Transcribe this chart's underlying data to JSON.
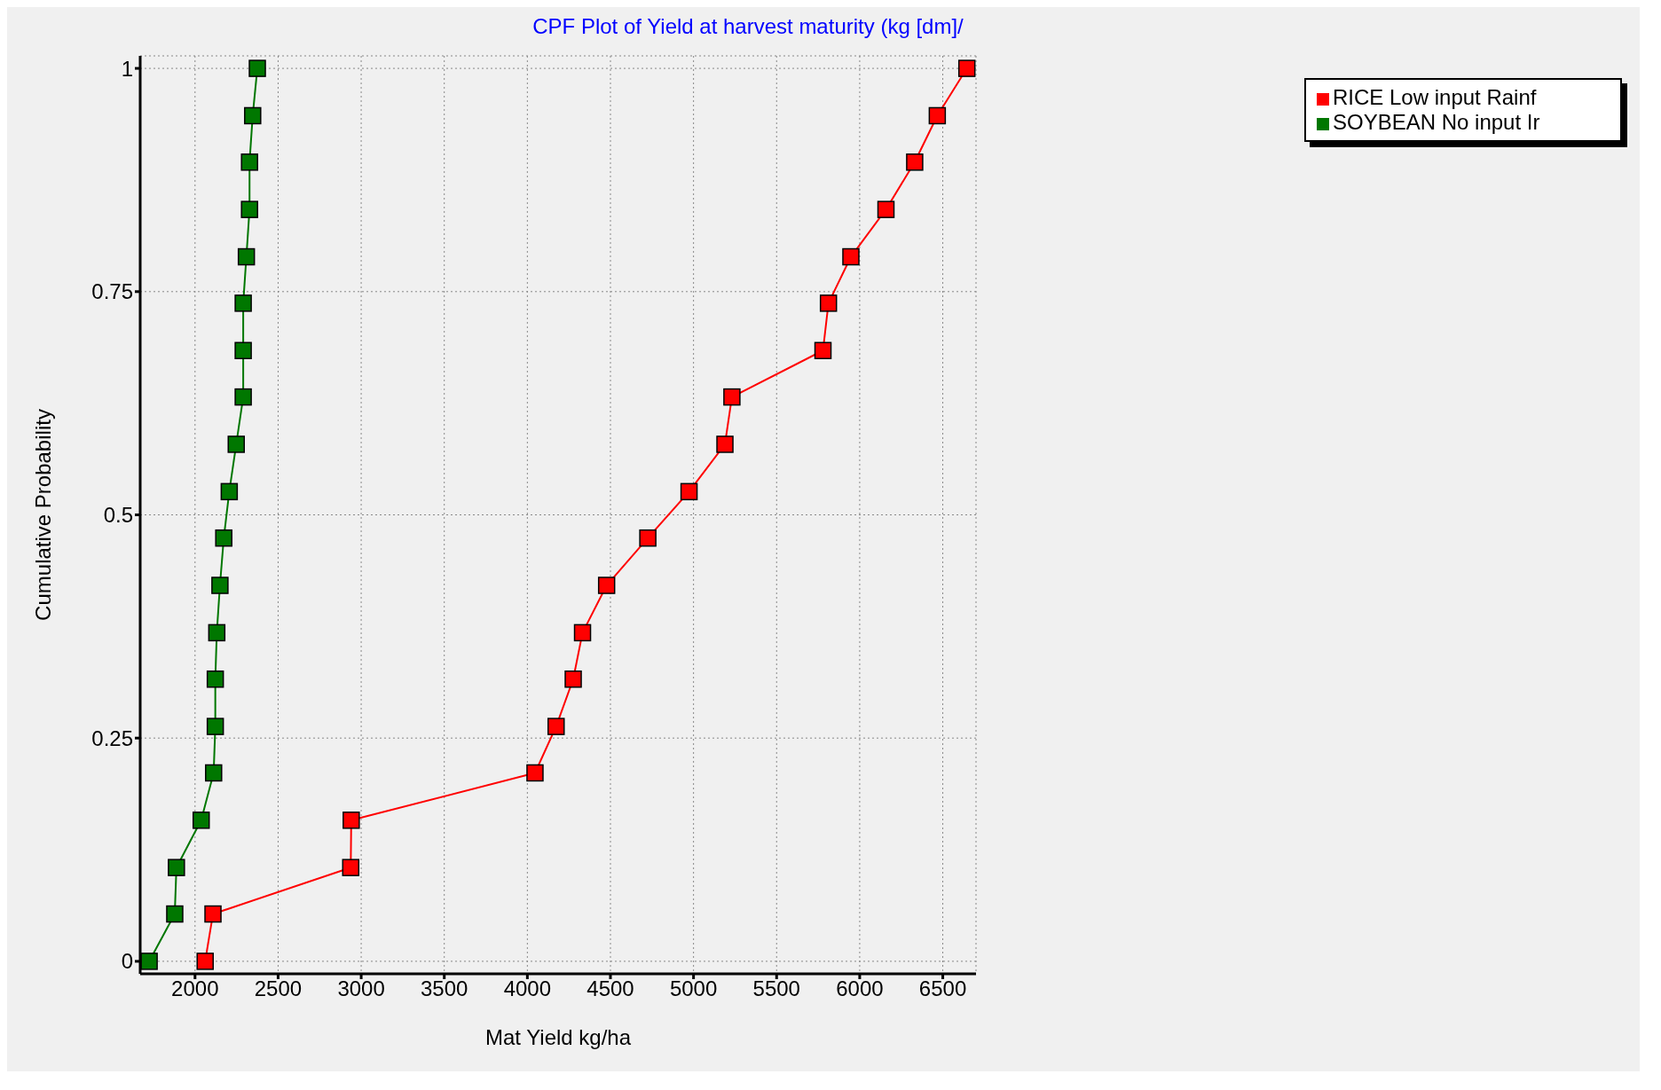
{
  "chart_data": {
    "type": "line",
    "title": "CPF Plot of Yield at harvest maturity (kg [dm]/",
    "xlabel": "Mat Yield kg/ha",
    "ylabel": "Cumulative Probability",
    "series": [
      {
        "name": "RICE Low input Rainf",
        "color": "#ff0000",
        "x": [
          2061,
          2108,
          2937,
          2940,
          4046,
          4173,
          4276,
          4332,
          4477,
          4725,
          4973,
          5189,
          5231,
          5779,
          5812,
          5947,
          6158,
          6331,
          6467,
          6645
        ],
        "values": [
          0,
          0.053,
          0.105,
          0.158,
          0.211,
          0.263,
          0.316,
          0.368,
          0.421,
          0.474,
          0.526,
          0.579,
          0.632,
          0.684,
          0.737,
          0.789,
          0.842,
          0.895,
          0.947,
          1
        ]
      },
      {
        "name": "SOYBEAN No input Ir",
        "color": "#007700",
        "x": [
          1724,
          1878,
          1888,
          2037,
          2112,
          2122,
          2122,
          2131,
          2150,
          2173,
          2206,
          2248,
          2290,
          2290,
          2290,
          2309,
          2328,
          2328,
          2347,
          2375
        ],
        "values": [
          0,
          0.053,
          0.105,
          0.158,
          0.211,
          0.263,
          0.316,
          0.368,
          0.421,
          0.474,
          0.526,
          0.579,
          0.632,
          0.684,
          0.737,
          0.789,
          0.842,
          0.895,
          0.947,
          1
        ]
      }
    ],
    "xlim": [
      1670,
      6700
    ],
    "xticks": [
      2000,
      2500,
      3000,
      3500,
      4000,
      4500,
      5000,
      5500,
      6000,
      6500
    ],
    "ylim": [
      -0.014,
      1.014
    ],
    "yticks": [
      0,
      0.25,
      0.5,
      0.75,
      1
    ],
    "grid": true,
    "legend": "top right",
    "marker": "square",
    "line_style": "solid"
  }
}
